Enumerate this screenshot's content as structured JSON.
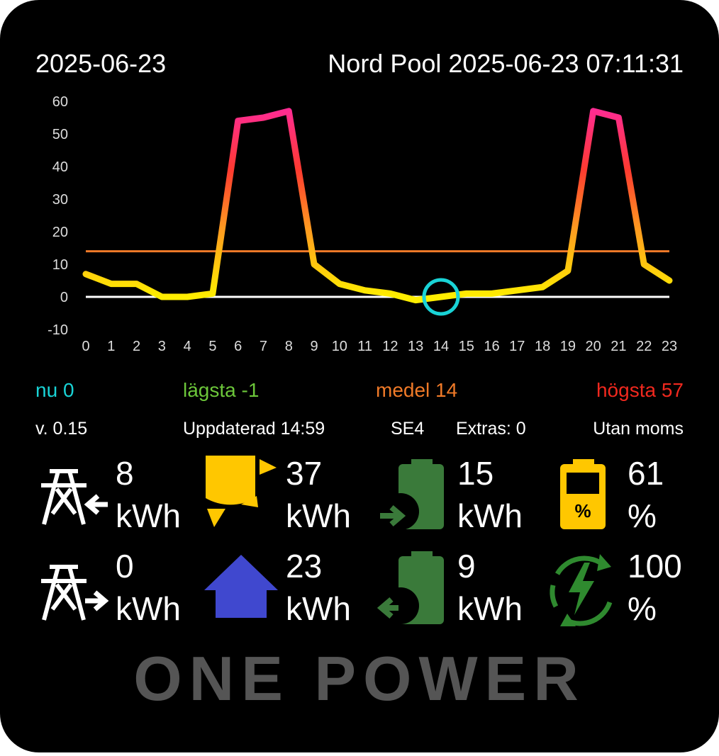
{
  "header": {
    "date": "2025-06-23",
    "source": "Nord Pool 2025-06-23 07:11:31"
  },
  "chart_data": {
    "type": "line",
    "x": [
      0,
      1,
      2,
      3,
      4,
      5,
      6,
      7,
      8,
      9,
      10,
      11,
      12,
      13,
      14,
      15,
      16,
      17,
      18,
      19,
      20,
      21,
      22,
      23
    ],
    "values": [
      7,
      4,
      4,
      0,
      0,
      1,
      54,
      55,
      57,
      10,
      4,
      2,
      1,
      -1,
      0,
      1,
      1,
      2,
      3,
      8,
      57,
      55,
      10,
      5
    ],
    "xlim": [
      0,
      23
    ],
    "xticks": [
      0,
      1,
      2,
      3,
      4,
      5,
      6,
      7,
      8,
      9,
      10,
      11,
      12,
      13,
      14,
      15,
      16,
      17,
      18,
      19,
      20,
      21,
      22,
      23
    ],
    "ylim": [
      -10,
      60
    ],
    "yticks": [
      -10,
      0,
      10,
      20,
      30,
      40,
      50,
      60
    ],
    "current_hour": 14
  },
  "stats": [
    {
      "label": "nu",
      "value": 0,
      "color": "#19d3d6"
    },
    {
      "label": "lägsta",
      "value": -1,
      "color": "#6cc63a"
    },
    {
      "label": "medel",
      "value": 14,
      "color": "#f07a28"
    },
    {
      "label": "högsta",
      "value": 57,
      "color": "#f0281e"
    }
  ],
  "status": [
    "v. 0.15",
    "Uppdaterad 14:59",
    "SE4",
    "Extras: 0",
    "Utan moms"
  ],
  "tiles": [
    {
      "value": 8,
      "unit": "kWh"
    },
    {
      "value": 37,
      "unit": "kWh"
    },
    {
      "value": 15,
      "unit": "kWh"
    },
    {
      "value": 61,
      "unit": "%",
      "icon_label": "%"
    },
    {
      "value": 0,
      "unit": "kWh"
    },
    {
      "value": 23,
      "unit": "kWh"
    },
    {
      "value": 9,
      "unit": "kWh"
    },
    {
      "value": 100,
      "unit": "%"
    }
  ],
  "logo": "ONE POWER"
}
